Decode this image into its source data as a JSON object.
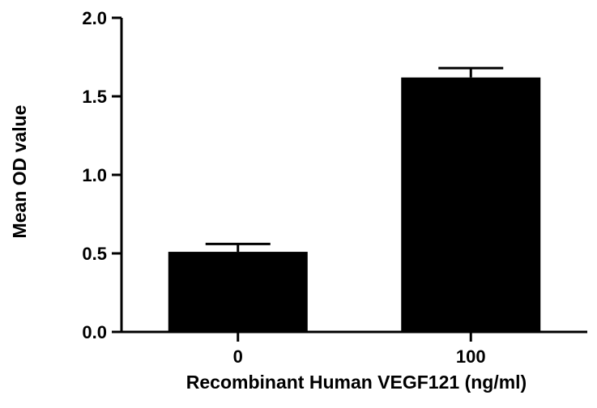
{
  "chart_data": {
    "type": "bar",
    "categories": [
      "0",
      "100"
    ],
    "values": [
      0.51,
      1.62
    ],
    "errors": [
      0.05,
      0.06
    ],
    "xlabel": "Recombinant Human VEGF121 (ng/ml)",
    "ylabel": "Mean OD value",
    "ylim": [
      0,
      2.0
    ],
    "yticks": [
      "0.0",
      "0.5",
      "1.0",
      "1.5",
      "2.0"
    ],
    "bar_color": "#000000",
    "grid": false
  }
}
